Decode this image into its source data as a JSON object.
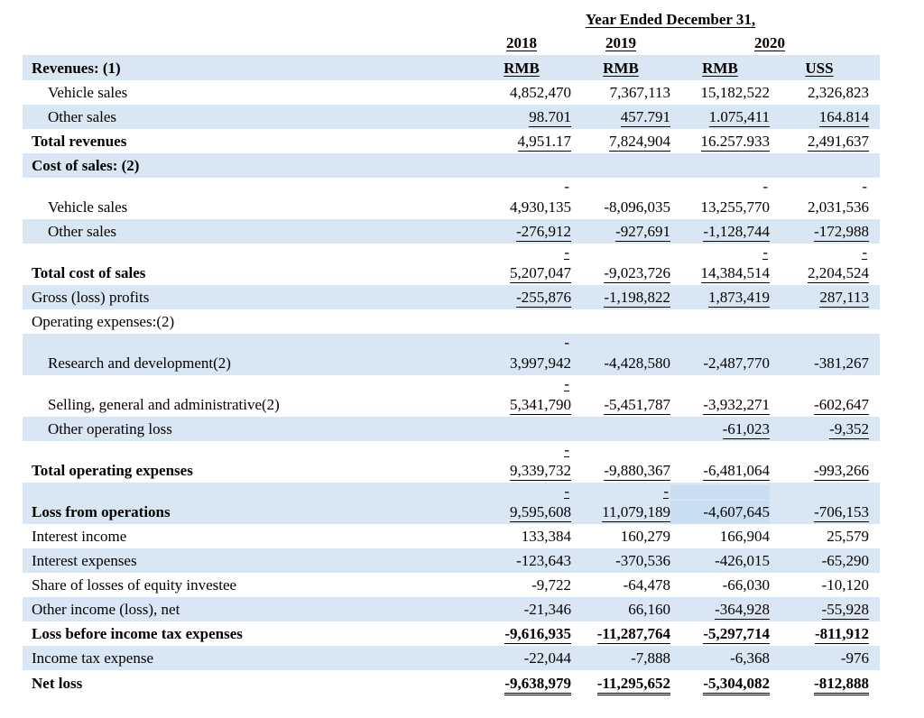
{
  "colors": {
    "stripe": "#d9e6f3",
    "shade": "#c9def1"
  },
  "header": {
    "title": "Year Ended December 31,",
    "years": [
      "2018",
      "2019",
      "2020"
    ],
    "units_row_label": "Revenues: (1)",
    "units": [
      "RMB",
      "RMB",
      "RMB",
      "USS"
    ]
  },
  "table": {
    "rows": [
      {
        "label": "Vehicle sales",
        "indent": 1,
        "bold": false,
        "bg": "white",
        "values": [
          "4,852,470",
          "7,367,113",
          "15,182,522",
          "2,326,823"
        ],
        "underline": [
          0,
          0,
          0,
          0
        ]
      },
      {
        "label": "Other sales",
        "indent": 1,
        "bold": false,
        "bg": "blue",
        "values": [
          "98.701",
          "457.791",
          "1.075,411",
          "164.814"
        ],
        "underline": [
          1,
          1,
          1,
          1
        ]
      },
      {
        "label": "Total revenues",
        "indent": 0,
        "bold": true,
        "bg": "white",
        "values": [
          "4,951.17",
          "7,824,904",
          "16.257.933",
          "2,491,637"
        ],
        "underline": [
          1,
          1,
          1,
          1
        ]
      },
      {
        "label": "Cost of sales: (2)",
        "indent": 0,
        "bold": true,
        "bg": "blue",
        "values": [
          "",
          "",
          "",
          ""
        ],
        "underline": [
          0,
          0,
          0,
          0
        ]
      },
      {
        "label": "Vehicle sales",
        "indent": 1,
        "bold": false,
        "bg": "white",
        "marks": [
          "-",
          "",
          "-",
          "-"
        ],
        "values": [
          "4,930,135",
          "-8,096,035",
          "13,255,770",
          "2,031,536"
        ],
        "underline": [
          0,
          0,
          0,
          0
        ]
      },
      {
        "label": "Other sales",
        "indent": 1,
        "bold": false,
        "bg": "blue",
        "values": [
          "-276,912",
          "-927,691",
          "-1,128,744",
          "-172,988"
        ],
        "underline": [
          1,
          1,
          1,
          1
        ]
      },
      {
        "label": "Total cost of sales",
        "indent": 0,
        "bold": true,
        "bg": "white",
        "marks": [
          "=",
          "",
          "=",
          "="
        ],
        "values": [
          "5,207,047",
          "-9,023,726",
          "14,384,514",
          "2,204,524"
        ],
        "underline": [
          1,
          1,
          1,
          1
        ]
      },
      {
        "label": "Gross (loss) profits",
        "indent": 0,
        "bold": false,
        "bg": "blue",
        "values": [
          "-255,876",
          "-1,198,822",
          "1,873,419",
          "287,113"
        ],
        "underline": [
          1,
          1,
          1,
          1
        ]
      },
      {
        "label": "Operating expenses:(2)",
        "indent": 0,
        "bold": false,
        "bg": "white",
        "values": [
          "",
          "",
          "",
          ""
        ],
        "underline": [
          0,
          0,
          0,
          0
        ]
      },
      {
        "label": "Research and development(2)",
        "indent": 1,
        "bold": false,
        "bg": "blue",
        "marks": [
          "-",
          "",
          "",
          ""
        ],
        "values": [
          "3,997,942",
          "-4,428,580",
          "-2,487,770",
          "-381,267"
        ],
        "underline": [
          0,
          0,
          0,
          0
        ]
      },
      {
        "label": "Selling, general and administrative(2)",
        "indent": 1,
        "bold": false,
        "bg": "white",
        "marks": [
          "=",
          "",
          "",
          ""
        ],
        "values": [
          "5,341,790",
          "-5,451,787",
          "-3,932,271",
          "-602,647"
        ],
        "underline": [
          1,
          1,
          1,
          1
        ]
      },
      {
        "label": "Other operating loss",
        "indent": 1,
        "bold": false,
        "bg": "blue",
        "values": [
          "",
          "",
          "-61,023",
          "-9,352"
        ],
        "underline": [
          0,
          0,
          1,
          1
        ]
      },
      {
        "label": "Total operating expenses",
        "indent": 0,
        "bold": true,
        "bg": "white",
        "marks": [
          "=",
          "",
          "",
          ""
        ],
        "values": [
          "9,339,732",
          "-9,880,367",
          "-6,481,064",
          "-993,266"
        ],
        "underline": [
          1,
          1,
          1,
          1
        ]
      },
      {
        "label": "Loss from operations",
        "indent": 0,
        "bold": true,
        "bg": "blue",
        "marks": [
          "=",
          "=",
          "",
          ""
        ],
        "shade_col3": true,
        "values": [
          "9,595,608",
          "11,079,189",
          "-4,607,645",
          "-706,153"
        ],
        "underline": [
          1,
          1,
          0,
          1
        ]
      },
      {
        "label": "Interest income",
        "indent": 0,
        "bold": false,
        "bg": "white",
        "values": [
          "133,384",
          "160,279",
          "166,904",
          "25,579"
        ],
        "underline": [
          0,
          0,
          0,
          0
        ]
      },
      {
        "label": "Interest expenses",
        "indent": 0,
        "bold": false,
        "bg": "blue",
        "values": [
          "-123,643",
          "-370,536",
          "-426,015",
          "-65,290"
        ],
        "underline": [
          0,
          0,
          0,
          0
        ]
      },
      {
        "label": "Share of losses of equity investee",
        "indent": 0,
        "bold": false,
        "bg": "white",
        "values": [
          "-9,722",
          "-64,478",
          "-66,030",
          "-10,120"
        ],
        "underline": [
          0,
          0,
          0,
          0
        ]
      },
      {
        "label": "Other income (loss), net",
        "indent": 0,
        "bold": false,
        "bg": "blue",
        "values": [
          "-21,346",
          "66,160",
          "-364,928",
          "-55,928"
        ],
        "underline": [
          0,
          0,
          1,
          1
        ]
      },
      {
        "label": "Loss before income tax expenses",
        "indent": 0,
        "bold": true,
        "bg": "white",
        "values": [
          "-9,616,935",
          "-11,287,764",
          "-5,297,714",
          "-811,912"
        ],
        "underline": [
          1,
          1,
          1,
          1
        ],
        "values_bold": true
      },
      {
        "label": "Income tax expense",
        "indent": 0,
        "bold": false,
        "bg": "blue",
        "values": [
          "-22,044",
          "-7,888",
          "-6,368",
          "-976"
        ],
        "underline": [
          0,
          0,
          0,
          0
        ]
      },
      {
        "label": "Net loss",
        "indent": 0,
        "bold": true,
        "bg": "white",
        "values": [
          "-9,638,979",
          "-11,295,652",
          "-5,304,082",
          "-812,888"
        ],
        "underline": [
          1,
          1,
          1,
          1
        ],
        "values_bold": true,
        "double_underline": true
      }
    ]
  }
}
